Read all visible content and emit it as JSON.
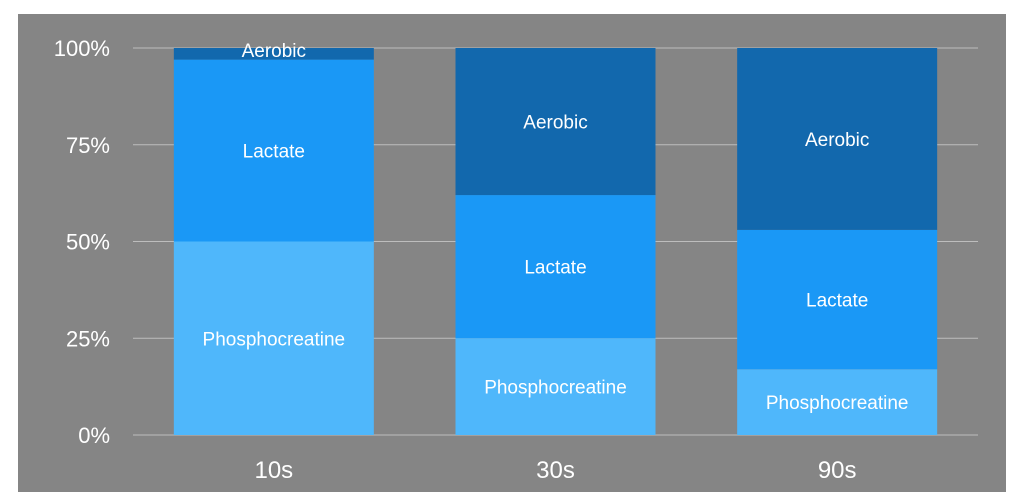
{
  "chart_data": {
    "type": "bar",
    "stacked": true,
    "normalized": true,
    "categories": [
      "10s",
      "30s",
      "90s"
    ],
    "series": [
      {
        "name": "Phosphocreatine",
        "values": [
          50,
          25,
          17
        ],
        "color": "#4fb7fb"
      },
      {
        "name": "Lactate",
        "values": [
          47,
          37,
          36
        ],
        "color": "#1a98f6"
      },
      {
        "name": "Aerobic",
        "values": [
          3,
          38,
          47
        ],
        "color": "#1268ad"
      }
    ],
    "ylim": [
      0,
      100
    ],
    "yticks": [
      {
        "value": 0,
        "label": "0%"
      },
      {
        "value": 25,
        "label": "25%"
      },
      {
        "value": 50,
        "label": "50%"
      },
      {
        "value": 75,
        "label": "75%"
      },
      {
        "value": 100,
        "label": "100%"
      }
    ],
    "grid": true,
    "legend": "none",
    "background": "#858585",
    "title": "",
    "xlabel": "",
    "ylabel": ""
  }
}
